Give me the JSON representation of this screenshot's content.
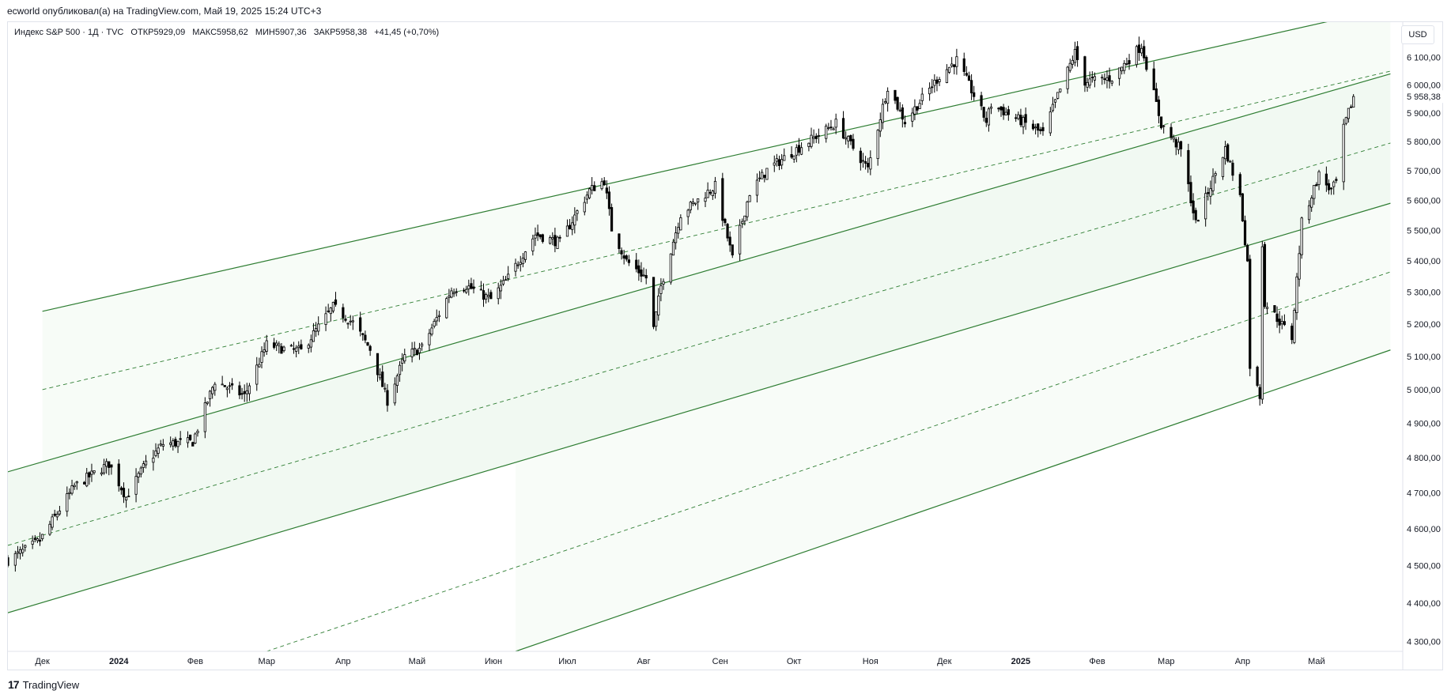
{
  "header": {
    "publisher_line": "ecworld опубликовал(а) на TradingView.com, Май 19, 2025 15:24 UTC+3"
  },
  "legend": {
    "symbol": "Индекс S&P 500 · 1Д · TVC",
    "open": "ОТКР5929,09",
    "high": "МАКС5958,62",
    "low": "МИН5907,36",
    "close": "ЗАКР5958,38",
    "change": "+41,45 (+0,70%)"
  },
  "currency": "USD",
  "footer": {
    "brand": "TradingView",
    "logo_icon": "tradingview-logo-icon"
  },
  "colors": {
    "channel": "#2e7d32",
    "candle": "#000000",
    "fill": "#e8f5e9",
    "grid": "#e0e3eb",
    "price_label_bg": "#ffffff"
  },
  "chart_data": {
    "type": "candlestick",
    "title": "",
    "x_axis": {
      "labels": [
        {
          "label": "Дек",
          "date": "2023-12-01"
        },
        {
          "label": "2024",
          "date": "2024-01-01",
          "bold": true
        },
        {
          "label": "Фев",
          "date": "2024-02-01"
        },
        {
          "label": "Мар",
          "date": "2024-03-01"
        },
        {
          "label": "Апр",
          "date": "2024-04-01"
        },
        {
          "label": "Май",
          "date": "2024-05-01"
        },
        {
          "label": "Июн",
          "date": "2024-06-01"
        },
        {
          "label": "Июл",
          "date": "2024-07-01"
        },
        {
          "label": "Авг",
          "date": "2024-08-01"
        },
        {
          "label": "Сен",
          "date": "2024-09-01"
        },
        {
          "label": "Окт",
          "date": "2024-10-01"
        },
        {
          "label": "Ноя",
          "date": "2024-11-01"
        },
        {
          "label": "Дек",
          "date": "2024-12-01"
        },
        {
          "label": "2025",
          "date": "2025-01-01",
          "bold": true
        },
        {
          "label": "Фев",
          "date": "2025-02-01"
        },
        {
          "label": "Мар",
          "date": "2025-03-01"
        },
        {
          "label": "Апр",
          "date": "2025-04-01"
        },
        {
          "label": "Май",
          "date": "2025-05-01"
        }
      ],
      "range": [
        "2023-11-17",
        "2025-06-05"
      ]
    },
    "y_axis": {
      "scale": "log",
      "range": [
        4275,
        6230
      ],
      "ticks": [
        {
          "value": 4300,
          "label": "4 300,00"
        },
        {
          "value": 4400,
          "label": "4 400,00"
        },
        {
          "value": 4500,
          "label": "4 500,00"
        },
        {
          "value": 4600,
          "label": "4 600,00"
        },
        {
          "value": 4700,
          "label": "4 700,00"
        },
        {
          "value": 4800,
          "label": "4 800,00"
        },
        {
          "value": 4900,
          "label": "4 900,00"
        },
        {
          "value": 5000,
          "label": "5 000,00"
        },
        {
          "value": 5100,
          "label": "5 100,00"
        },
        {
          "value": 5200,
          "label": "5 200,00"
        },
        {
          "value": 5300,
          "label": "5 300,00"
        },
        {
          "value": 5400,
          "label": "5 400,00"
        },
        {
          "value": 5500,
          "label": "5 500,00"
        },
        {
          "value": 5600,
          "label": "5 600,00"
        },
        {
          "value": 5700,
          "label": "5 700,00"
        },
        {
          "value": 5800,
          "label": "5 800,00"
        },
        {
          "value": 5900,
          "label": "5 900,00"
        },
        {
          "value": 6000,
          "label": "6 000,00"
        },
        {
          "value": 6100,
          "label": "6 100,00"
        }
      ],
      "last_price": {
        "value": 5958.38,
        "label": "5 958,38"
      }
    },
    "price_path": [
      [
        "2023-11-17",
        4514
      ],
      [
        "2023-11-30",
        4568
      ],
      [
        "2023-12-14",
        4719
      ],
      [
        "2023-12-28",
        4783
      ],
      [
        "2024-01-04",
        4688
      ],
      [
        "2024-01-12",
        4784
      ],
      [
        "2024-01-19",
        4840
      ],
      [
        "2024-01-31",
        4846
      ],
      [
        "2024-02-09",
        5026
      ],
      [
        "2024-02-21",
        4981
      ],
      [
        "2024-03-01",
        5137
      ],
      [
        "2024-03-08",
        5123
      ],
      [
        "2024-03-15",
        5117
      ],
      [
        "2024-03-28",
        5254
      ],
      [
        "2024-04-05",
        5204
      ],
      [
        "2024-04-12",
        5123
      ],
      [
        "2024-04-19",
        4967
      ],
      [
        "2024-04-26",
        5100
      ],
      [
        "2024-05-03",
        5127
      ],
      [
        "2024-05-15",
        5308
      ],
      [
        "2024-05-21",
        5321
      ],
      [
        "2024-05-31",
        5277
      ],
      [
        "2024-06-07",
        5346
      ],
      [
        "2024-06-18",
        5487
      ],
      [
        "2024-06-28",
        5460
      ],
      [
        "2024-07-10",
        5633
      ],
      [
        "2024-07-16",
        5667
      ],
      [
        "2024-07-19",
        5505
      ],
      [
        "2024-07-25",
        5400
      ],
      [
        "2024-08-02",
        5346
      ],
      [
        "2024-08-05",
        5186
      ],
      [
        "2024-08-08",
        5319
      ],
      [
        "2024-08-16",
        5554
      ],
      [
        "2024-08-30",
        5648
      ],
      [
        "2024-09-06",
        5408
      ],
      [
        "2024-09-13",
        5626
      ],
      [
        "2024-09-20",
        5702
      ],
      [
        "2024-09-30",
        5762
      ],
      [
        "2024-10-18",
        5864
      ],
      [
        "2024-10-31",
        5705
      ],
      [
        "2024-11-08",
        5995
      ],
      [
        "2024-11-15",
        5870
      ],
      [
        "2024-11-29",
        6032
      ],
      [
        "2024-12-06",
        6090
      ],
      [
        "2024-12-18",
        5872
      ],
      [
        "2024-12-20",
        5930
      ],
      [
        "2025-01-02",
        5868
      ],
      [
        "2025-01-10",
        5827
      ],
      [
        "2025-01-23",
        6118
      ],
      [
        "2025-01-27",
        6012
      ],
      [
        "2025-02-07",
        6025
      ],
      [
        "2025-02-19",
        6144
      ],
      [
        "2025-02-27",
        5861
      ],
      [
        "2025-03-07",
        5770
      ],
      [
        "2025-03-13",
        5522
      ],
      [
        "2025-03-25",
        5776
      ],
      [
        "2025-03-31",
        5611
      ],
      [
        "2025-04-03",
        5396
      ],
      [
        "2025-04-04",
        5074
      ],
      [
        "2025-04-08",
        4982
      ],
      [
        "2025-04-09",
        5456
      ],
      [
        "2025-04-10",
        5268
      ],
      [
        "2025-04-21",
        5158
      ],
      [
        "2025-04-25",
        5525
      ],
      [
        "2025-05-02",
        5686
      ],
      [
        "2025-05-07",
        5631
      ],
      [
        "2025-05-09",
        5660
      ],
      [
        "2025-05-12",
        5844
      ],
      [
        "2025-05-16",
        5958
      ]
    ],
    "channel_lines": [
      {
        "name": "",
        "style": "solid",
        "x1": "2023-12-01",
        "y1": 5240,
        "x2": "2025-05-31",
        "y2": 6285
      },
      {
        "name": "",
        "style": "dashed",
        "x1": "2023-12-01",
        "y1": 5000,
        "x2": "2025-05-31",
        "y2": 6050
      },
      {
        "name": "",
        "style": "solid",
        "x1": "2023-11-17",
        "y1": 4760,
        "x2": "2025-05-31",
        "y2": 6040
      },
      {
        "name": "",
        "style": "dashed",
        "x1": "2023-11-17",
        "y1": 4555,
        "x2": "2025-05-31",
        "y2": 5795
      },
      {
        "name": "",
        "style": "solid",
        "x1": "2023-11-17",
        "y1": 4375,
        "x2": "2025-05-31",
        "y2": 5590
      },
      {
        "name": "",
        "style": "dashed",
        "x1": "2024-03-01",
        "y1": 4275,
        "x2": "2025-05-31",
        "y2": 5365
      },
      {
        "name": "",
        "style": "solid",
        "x1": "2024-06-10",
        "y1": 4275,
        "x2": "2025-05-31",
        "y2": 5120
      }
    ],
    "channel_fills": [
      {
        "top": 0,
        "bottom": 2,
        "opacity": 0.35
      },
      {
        "top": 2,
        "bottom": 4,
        "opacity": 0.6
      },
      {
        "top": 4,
        "bottom": 6,
        "opacity": 0.3
      }
    ]
  }
}
